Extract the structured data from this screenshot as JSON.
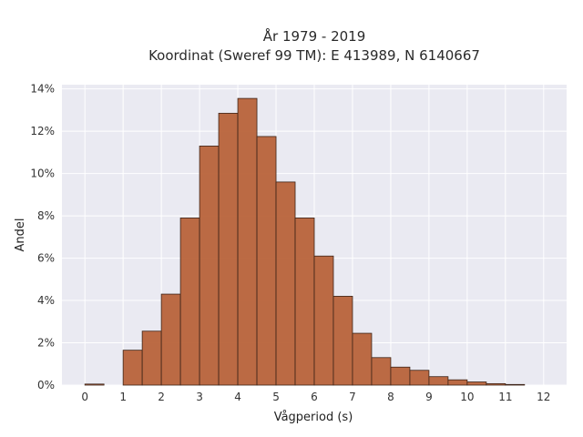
{
  "chart_data": {
    "type": "bar",
    "title_lines": [
      "År 1979 - 2019",
      "Koordinat (Sweref 99 TM): E 413989, N 6140667"
    ],
    "xlabel": "Vågperiod (s)",
    "ylabel": "Andel",
    "xlim": [
      -0.6,
      12.6
    ],
    "ylim": [
      0,
      14.2
    ],
    "x_ticks": [
      "0",
      "1",
      "2",
      "3",
      "4",
      "5",
      "6",
      "7",
      "8",
      "9",
      "10",
      "11",
      "12"
    ],
    "y_ticks": [
      "0%",
      "2%",
      "4%",
      "6%",
      "8%",
      "10%",
      "12%",
      "14%"
    ],
    "bin_width": 0.5,
    "bins": [
      {
        "start": 0.0,
        "value": 0.05
      },
      {
        "start": 1.0,
        "value": 1.65
      },
      {
        "start": 1.5,
        "value": 2.55
      },
      {
        "start": 2.0,
        "value": 4.3
      },
      {
        "start": 2.5,
        "value": 7.9
      },
      {
        "start": 3.0,
        "value": 11.3
      },
      {
        "start": 3.5,
        "value": 12.85
      },
      {
        "start": 4.0,
        "value": 13.55
      },
      {
        "start": 4.5,
        "value": 11.75
      },
      {
        "start": 5.0,
        "value": 9.6
      },
      {
        "start": 5.5,
        "value": 7.9
      },
      {
        "start": 6.0,
        "value": 6.1
      },
      {
        "start": 6.5,
        "value": 4.2
      },
      {
        "start": 7.0,
        "value": 2.45
      },
      {
        "start": 7.5,
        "value": 1.3
      },
      {
        "start": 8.0,
        "value": 0.85
      },
      {
        "start": 8.5,
        "value": 0.7
      },
      {
        "start": 9.0,
        "value": 0.4
      },
      {
        "start": 9.5,
        "value": 0.25
      },
      {
        "start": 10.0,
        "value": 0.15
      },
      {
        "start": 10.5,
        "value": 0.07
      },
      {
        "start": 11.0,
        "value": 0.03
      }
    ],
    "grid": true,
    "colors": {
      "bar": "#b8633a",
      "bar_edge": "#3d2418",
      "plot_bg": "#eaeaf2",
      "grid": "#ffffff"
    }
  }
}
